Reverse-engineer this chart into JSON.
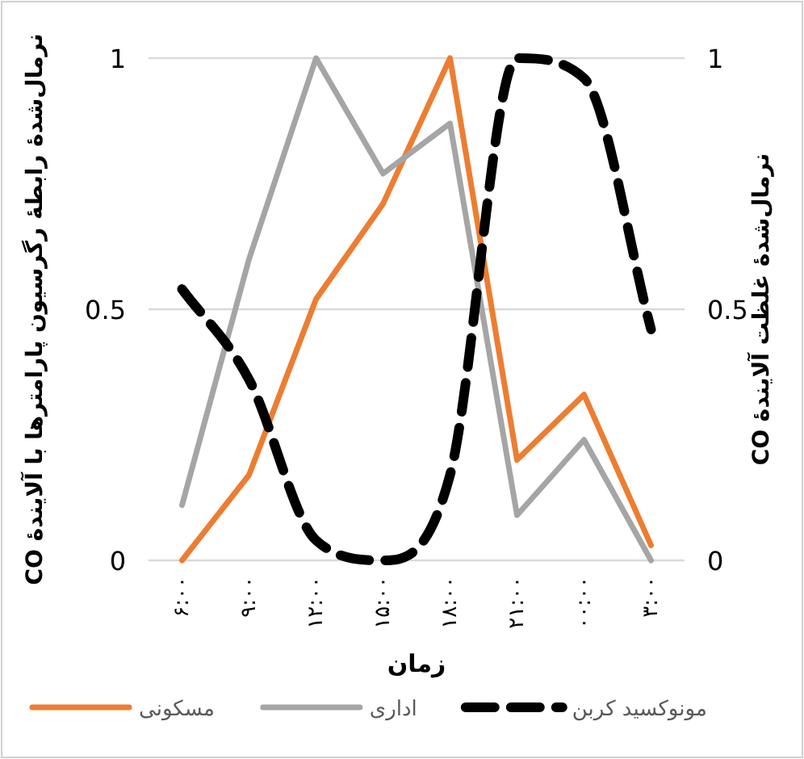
{
  "chart_data": {
    "type": "line",
    "xlabel": "زمان",
    "ylabel": "نرمال‌شدهٔ رابطهٔ رگرسیون پارامترها با آلایندهٔ CO",
    "y2label": "نرمال‌شدهٔ غلظت آلایندهٔ CO",
    "categories": [
      "۶:۰۰",
      "۹:۰۰",
      "۱۲:۰۰",
      "۱۵:۰۰",
      "۱۸:۰۰",
      "۲۱:۰۰",
      "۰۰:۰۰",
      "۳:۰۰"
    ],
    "series": [
      {
        "name": "مسکونی",
        "color": "#ed7d31",
        "line_style": "solid",
        "values": [
          0,
          0.17,
          0.52,
          0.71,
          1,
          0.2,
          0.33,
          0.03
        ]
      },
      {
        "name": "اداری",
        "color": "#a5a5a5",
        "line_style": "solid",
        "values": [
          0.11,
          0.6,
          1,
          0.77,
          0.87,
          0.09,
          0.24,
          0
        ]
      },
      {
        "name": "مونوکسید کربن",
        "color": "#000000",
        "line_style": "dashed",
        "values": [
          0.54,
          0.36,
          0.04,
          0,
          0.17,
          1,
          0.96,
          0.46
        ]
      }
    ],
    "ylim": [
      0,
      1
    ],
    "yticks": [
      0,
      0.5,
      1
    ],
    "y2lim": [
      0,
      1
    ],
    "y2ticks": [
      0,
      0.5,
      1
    ],
    "grid": "y",
    "legend": "bottom"
  }
}
